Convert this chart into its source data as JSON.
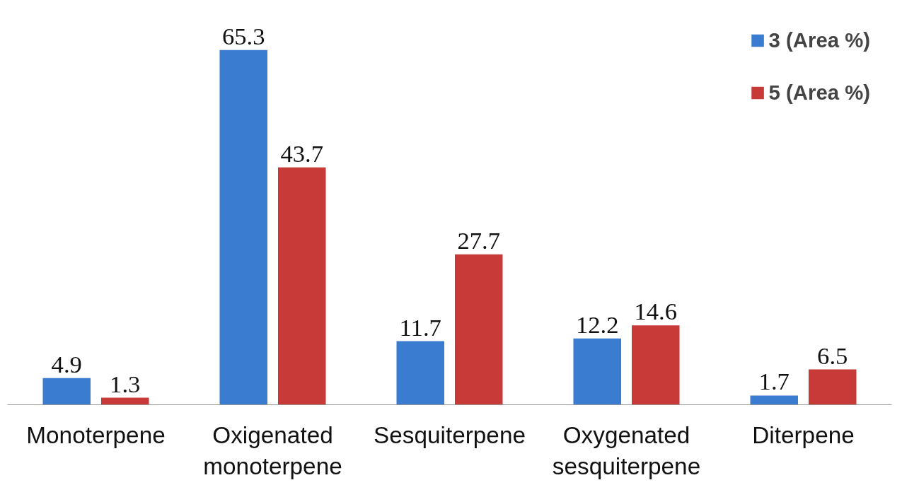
{
  "chart_data": {
    "type": "bar",
    "categories": [
      "Monoterpene",
      "Oxigenated monoterpene",
      "Sesquiterpene",
      "Oxygenated sesquiterpene",
      "Diterpene"
    ],
    "series": [
      {
        "name": "3 (Area %)",
        "color": "#3a7dd0",
        "values": [
          4.9,
          65.3,
          11.7,
          12.2,
          1.7
        ]
      },
      {
        "name": "5 (Area %)",
        "color": "#c73a38",
        "values": [
          1.3,
          43.7,
          27.7,
          14.6,
          6.5
        ]
      }
    ],
    "data_labels": true,
    "legend": "top right",
    "grid": false
  }
}
